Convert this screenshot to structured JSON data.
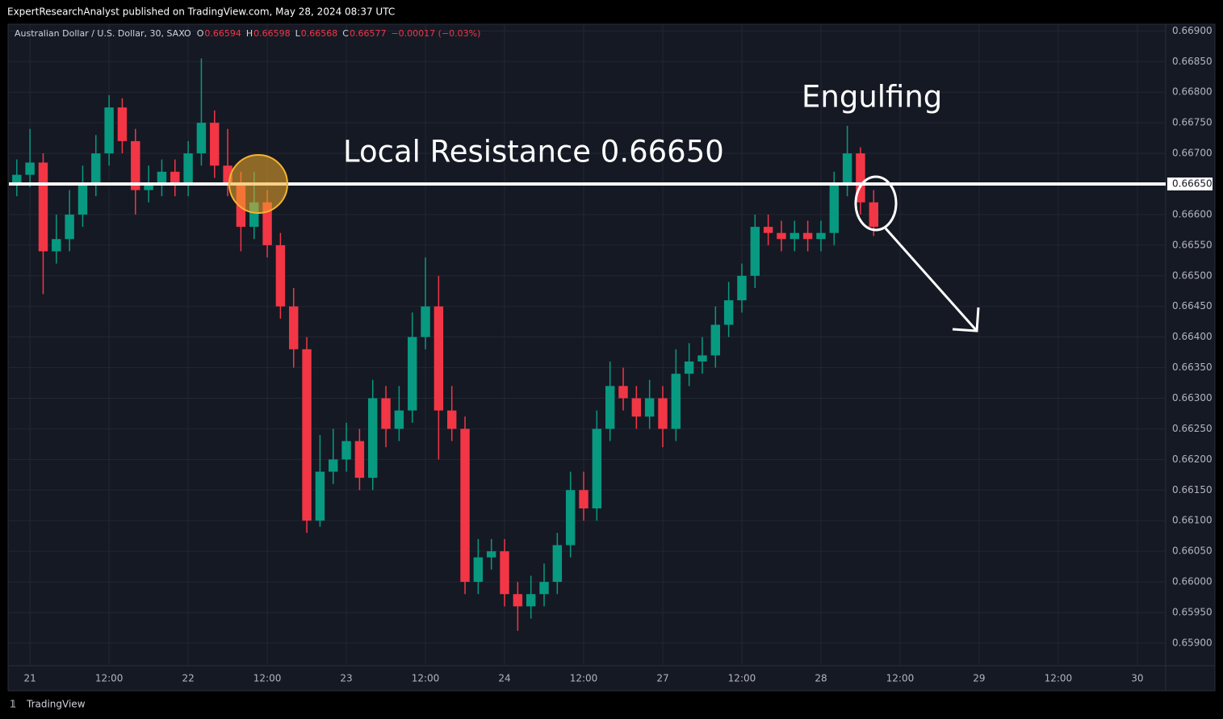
{
  "header": {
    "publisher": "ExpertResearchAnalyst published on TradingView.com, May 28, 2024 08:37 UTC"
  },
  "footer": {
    "brand": "TradingView"
  },
  "chart_data": {
    "type": "candlestick",
    "legend": {
      "symbol": "Australian Dollar / U.S. Dollar, 30, SAXO",
      "ohlc": [
        {
          "key": "O",
          "value": "0.66594"
        },
        {
          "key": "H",
          "value": "0.66598"
        },
        {
          "key": "L",
          "value": "0.66568"
        },
        {
          "key": "C",
          "value": "0.66577"
        }
      ],
      "change": "−0.00017 (−0.03%)"
    },
    "annotations": {
      "resistance": "Local Resistance 0.66650",
      "pattern": "Engulfing"
    },
    "hline": {
      "value": 0.6665,
      "label": "0.66650"
    },
    "up_color": "#089981",
    "down_color": "#f23645",
    "x": [
      -2,
      0,
      2,
      4,
      6,
      8,
      10,
      12,
      14,
      16,
      18,
      20,
      22,
      24,
      26,
      28,
      30,
      32,
      34,
      36,
      38,
      40,
      42,
      44,
      46,
      48,
      50,
      52,
      54,
      56,
      58,
      60,
      62,
      64,
      66,
      68,
      70,
      72,
      74,
      76,
      78,
      80,
      82,
      84,
      86,
      88,
      90,
      92,
      94,
      96,
      98,
      100,
      102,
      104,
      106,
      108,
      110,
      112,
      114,
      116,
      118,
      120,
      122,
      124,
      126,
      128
    ],
    "open": [
      0.6665,
      0.66665,
      0.66685,
      0.6654,
      0.6656,
      0.666,
      0.6665,
      0.667,
      0.66775,
      0.6672,
      0.6664,
      0.6665,
      0.6667,
      0.6665,
      0.667,
      0.6675,
      0.6668,
      0.6665,
      0.6658,
      0.6662,
      0.6655,
      0.6645,
      0.6638,
      0.661,
      0.6618,
      0.662,
      0.6623,
      0.6617,
      0.663,
      0.6625,
      0.6628,
      0.664,
      0.6645,
      0.6628,
      0.6625,
      0.66,
      0.6604,
      0.6605,
      0.6598,
      0.6596,
      0.6598,
      0.66,
      0.6606,
      0.6615,
      0.6612,
      0.6625,
      0.6632,
      0.663,
      0.6627,
      0.663,
      0.6625,
      0.6634,
      0.6636,
      0.6637,
      0.6642,
      0.6646,
      0.665,
      0.6658,
      0.6657,
      0.6656,
      0.6657,
      0.6656,
      0.6657,
      0.6665,
      0.667,
      0.6662
    ],
    "high": [
      0.6669,
      0.6674,
      0.667,
      0.666,
      0.6664,
      0.6668,
      0.6673,
      0.66795,
      0.6679,
      0.6674,
      0.6668,
      0.6669,
      0.6669,
      0.6672,
      0.66855,
      0.6677,
      0.6674,
      0.6667,
      0.6667,
      0.6664,
      0.6657,
      0.6648,
      0.664,
      0.6624,
      0.6625,
      0.6626,
      0.6625,
      0.6633,
      0.6632,
      0.6632,
      0.6644,
      0.6653,
      0.665,
      0.6632,
      0.6627,
      0.6607,
      0.6607,
      0.6607,
      0.66,
      0.6601,
      0.6603,
      0.6608,
      0.6618,
      0.6618,
      0.6628,
      0.6636,
      0.6635,
      0.6632,
      0.6633,
      0.6632,
      0.6638,
      0.6639,
      0.664,
      0.6645,
      0.6649,
      0.6652,
      0.666,
      0.666,
      0.6659,
      0.6659,
      0.6659,
      0.6659,
      0.6667,
      0.66745,
      0.6671,
      0.6664
    ],
    "low": [
      0.6663,
      0.66645,
      0.6647,
      0.6652,
      0.6654,
      0.6658,
      0.6663,
      0.6668,
      0.667,
      0.666,
      0.6662,
      0.6663,
      0.6663,
      0.6663,
      0.6668,
      0.6666,
      0.6663,
      0.6654,
      0.6656,
      0.6653,
      0.6643,
      0.6635,
      0.6608,
      0.6609,
      0.6616,
      0.6618,
      0.6615,
      0.6615,
      0.6622,
      0.6623,
      0.6626,
      0.6638,
      0.662,
      0.6623,
      0.6598,
      0.6598,
      0.6602,
      0.6596,
      0.6592,
      0.6594,
      0.6596,
      0.6598,
      0.6604,
      0.661,
      0.661,
      0.6623,
      0.6628,
      0.6625,
      0.6625,
      0.6622,
      0.6623,
      0.6632,
      0.6634,
      0.6635,
      0.664,
      0.6644,
      0.6648,
      0.6655,
      0.6654,
      0.6654,
      0.6654,
      0.6654,
      0.6655,
      0.6663,
      0.666,
      0.66565
    ],
    "close": [
      0.66665,
      0.66685,
      0.6654,
      0.6656,
      0.666,
      0.6665,
      0.667,
      0.66775,
      0.6672,
      0.6664,
      0.6665,
      0.6667,
      0.6665,
      0.667,
      0.6675,
      0.6668,
      0.6665,
      0.6658,
      0.6662,
      0.6655,
      0.6645,
      0.6638,
      0.661,
      0.6618,
      0.662,
      0.6623,
      0.6617,
      0.663,
      0.6625,
      0.6628,
      0.664,
      0.6645,
      0.6628,
      0.6625,
      0.66,
      0.6604,
      0.6605,
      0.6598,
      0.6596,
      0.6598,
      0.66,
      0.6606,
      0.6615,
      0.6612,
      0.6625,
      0.6632,
      0.663,
      0.6627,
      0.663,
      0.6625,
      0.6634,
      0.6636,
      0.6637,
      0.6642,
      0.6646,
      0.665,
      0.6658,
      0.6657,
      0.6656,
      0.6657,
      0.6656,
      0.6657,
      0.6665,
      0.667,
      0.6662,
      0.6658
    ],
    "xlim": [
      -3.2,
      172.3
    ],
    "xticks": [
      {
        "value": 0,
        "label": "21"
      },
      {
        "value": 12,
        "label": "12:00"
      },
      {
        "value": 24,
        "label": "22"
      },
      {
        "value": 36,
        "label": "12:00"
      },
      {
        "value": 48,
        "label": "23"
      },
      {
        "value": 60,
        "label": "12:00"
      },
      {
        "value": 72,
        "label": "24"
      },
      {
        "value": 84,
        "label": "12:00"
      },
      {
        "value": 96,
        "label": "27"
      },
      {
        "value": 108,
        "label": "12:00"
      },
      {
        "value": 120,
        "label": "28"
      },
      {
        "value": 132,
        "label": "12:00"
      },
      {
        "value": 144,
        "label": "29"
      },
      {
        "value": 156,
        "label": "12:00"
      },
      {
        "value": 168,
        "label": "30"
      }
    ],
    "ylim": [
      0.65863,
      0.66911
    ],
    "yticks": [
      {
        "value": 0.659,
        "label": "0.65900"
      },
      {
        "value": 0.6595,
        "label": "0.65950"
      },
      {
        "value": 0.66,
        "label": "0.66000"
      },
      {
        "value": 0.6605,
        "label": "0.66050"
      },
      {
        "value": 0.661,
        "label": "0.66100"
      },
      {
        "value": 0.6615,
        "label": "0.66150"
      },
      {
        "value": 0.662,
        "label": "0.66200"
      },
      {
        "value": 0.6625,
        "label": "0.66250"
      },
      {
        "value": 0.663,
        "label": "0.66300"
      },
      {
        "value": 0.6635,
        "label": "0.66350"
      },
      {
        "value": 0.664,
        "label": "0.66400"
      },
      {
        "value": 0.6645,
        "label": "0.66450"
      },
      {
        "value": 0.665,
        "label": "0.66500"
      },
      {
        "value": 0.6655,
        "label": "0.66550"
      },
      {
        "value": 0.666,
        "label": "0.66600"
      },
      {
        "value": 0.6665,
        "label": "0.66650"
      },
      {
        "value": 0.667,
        "label": "0.66700"
      },
      {
        "value": 0.6675,
        "label": "0.66750"
      },
      {
        "value": 0.668,
        "label": "0.66800"
      },
      {
        "value": 0.6685,
        "label": "0.66850"
      },
      {
        "value": 0.669,
        "label": "0.66900"
      }
    ],
    "grid": true
  }
}
